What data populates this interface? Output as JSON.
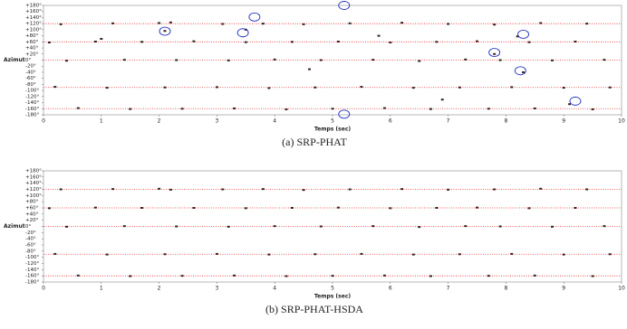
{
  "chart_data": [
    {
      "type": "scatter",
      "caption": "(a) SRP-PHAT",
      "x_label": "Temps (sec)",
      "y_label": "Azimut",
      "xlim": [
        0,
        10
      ],
      "xticks": [
        0,
        1,
        2,
        3,
        4,
        5,
        6,
        7,
        8,
        9,
        10
      ],
      "ylim": [
        -180,
        180
      ],
      "yticks": [
        {
          "value": -180,
          "label": "-180°"
        },
        {
          "value": -160,
          "label": "-160°"
        },
        {
          "value": -140,
          "label": "-140°"
        },
        {
          "value": -120,
          "label": "-120°"
        },
        {
          "value": -100,
          "label": "-100°"
        },
        {
          "value": -80,
          "label": "-80°"
        },
        {
          "value": -60,
          "label": "-60°"
        },
        {
          "value": -40,
          "label": "-40°"
        },
        {
          "value": -20,
          "label": "-20°"
        },
        {
          "value": 0,
          "label": "0°"
        },
        {
          "value": 20,
          "label": "+20°"
        },
        {
          "value": 40,
          "label": "+40°"
        },
        {
          "value": 60,
          "label": "+60°"
        },
        {
          "value": 80,
          "label": "+80°"
        },
        {
          "value": 100,
          "label": "+100°"
        },
        {
          "value": 120,
          "label": "+120°"
        },
        {
          "value": 140,
          "label": "+140°"
        },
        {
          "value": 160,
          "label": "+160°"
        },
        {
          "value": 180,
          "label": "+180°"
        }
      ],
      "reference_lines": [
        120,
        60,
        0,
        -90,
        -160
      ],
      "reference_color": "#e03030",
      "color": "#3a2020",
      "x": [
        0.3,
        1.2,
        2.0,
        2.2,
        3.1,
        3.8,
        4.5,
        5.3,
        6.2,
        7.0,
        7.8,
        8.6,
        9.4,
        0.1,
        0.9,
        1.7,
        2.6,
        3.5,
        4.3,
        5.1,
        6.0,
        6.8,
        7.5,
        8.4,
        9.2,
        0.4,
        1.4,
        2.3,
        3.2,
        4.0,
        4.8,
        5.7,
        6.5,
        7.3,
        7.9,
        8.8,
        9.7,
        0.2,
        1.1,
        2.1,
        3.0,
        3.9,
        4.7,
        5.5,
        6.4,
        7.2,
        8.1,
        9.0,
        9.8,
        0.6,
        1.5,
        2.4,
        3.3,
        4.2,
        5.0,
        5.9,
        6.7,
        7.7,
        8.5,
        9.5,
        1.0,
        2.1,
        3.5,
        4.6,
        5.8,
        6.9,
        7.8,
        8.3,
        9.1,
        8.2
      ],
      "values": [
        118,
        121,
        122,
        124,
        119,
        120,
        118,
        121,
        123,
        119,
        117,
        122,
        120,
        58,
        61,
        60,
        62,
        59,
        60,
        61,
        58,
        60,
        62,
        59,
        61,
        -2,
        1,
        0,
        -1,
        2,
        0,
        1,
        -3,
        2,
        0,
        -1,
        1,
        -88,
        -91,
        -90,
        -89,
        -92,
        -90,
        -88,
        -91,
        -90,
        -89,
        -91,
        -90,
        -158,
        -161,
        -160,
        -159,
        -162,
        -160,
        -158,
        -161,
        -160,
        -159,
        -162,
        70,
        96,
        100,
        -30,
        80,
        -130,
        20,
        -40,
        -145,
        78
      ],
      "highlights": {
        "color": "#2030c0",
        "x": [
          5.2,
          3.65,
          2.1,
          3.45,
          8.3,
          7.8,
          8.25,
          9.2,
          5.2
        ],
        "values": [
          180,
          142,
          95,
          90,
          85,
          25,
          -35,
          -135,
          -178
        ]
      }
    },
    {
      "type": "scatter",
      "caption": "(b) SRP-PHAT-HSDA",
      "x_label": "Temps (sec)",
      "y_label": "Azimut",
      "xlim": [
        0,
        10
      ],
      "xticks": [
        0,
        1,
        2,
        3,
        4,
        5,
        6,
        7,
        8,
        9,
        10
      ],
      "ylim": [
        -180,
        180
      ],
      "yticks": [
        {
          "value": -180,
          "label": "-180°"
        },
        {
          "value": -160,
          "label": "-160°"
        },
        {
          "value": -140,
          "label": "-140°"
        },
        {
          "value": -120,
          "label": "-120°"
        },
        {
          "value": -100,
          "label": "-100°"
        },
        {
          "value": -80,
          "label": "-80°"
        },
        {
          "value": -60,
          "label": "-60°"
        },
        {
          "value": -40,
          "label": "-40°"
        },
        {
          "value": -20,
          "label": "-20°"
        },
        {
          "value": 0,
          "label": "0°"
        },
        {
          "value": 20,
          "label": "+20°"
        },
        {
          "value": 40,
          "label": "+40°"
        },
        {
          "value": 60,
          "label": "+60°"
        },
        {
          "value": 80,
          "label": "+80°"
        },
        {
          "value": 100,
          "label": "+100°"
        },
        {
          "value": 120,
          "label": "+120°"
        },
        {
          "value": 140,
          "label": "+140°"
        },
        {
          "value": 160,
          "label": "+160°"
        },
        {
          "value": 180,
          "label": "+180°"
        }
      ],
      "reference_lines": [
        120,
        60,
        0,
        -90,
        -160
      ],
      "reference_color": "#e03030",
      "color": "#3a2020",
      "x": [
        0.3,
        1.2,
        2.0,
        2.2,
        3.1,
        3.8,
        4.5,
        5.3,
        6.2,
        7.0,
        7.8,
        8.6,
        9.4,
        0.1,
        0.9,
        1.7,
        2.6,
        3.5,
        4.3,
        5.1,
        6.0,
        6.8,
        7.5,
        8.4,
        9.2,
        0.4,
        1.4,
        2.3,
        3.2,
        4.0,
        4.8,
        5.7,
        6.5,
        7.3,
        7.9,
        8.8,
        9.7,
        0.2,
        1.1,
        2.1,
        3.0,
        3.9,
        4.7,
        5.5,
        6.4,
        7.2,
        8.1,
        9.0,
        9.8,
        0.6,
        1.5,
        2.4,
        3.3,
        4.2,
        5.0,
        5.9,
        6.7,
        7.7,
        8.5,
        9.5
      ],
      "values": [
        120,
        121,
        122,
        119,
        120,
        121,
        118,
        120,
        121,
        119,
        120,
        122,
        120,
        59,
        61,
        60,
        60,
        59,
        60,
        61,
        59,
        60,
        61,
        59,
        60,
        -1,
        1,
        0,
        -1,
        1,
        0,
        1,
        -2,
        1,
        0,
        -1,
        1,
        -89,
        -91,
        -90,
        -89,
        -91,
        -90,
        -89,
        -91,
        -90,
        -89,
        -91,
        -90,
        -159,
        -161,
        -160,
        -159,
        -161,
        -160,
        -159,
        -161,
        -160,
        -159,
        -161
      ]
    }
  ]
}
